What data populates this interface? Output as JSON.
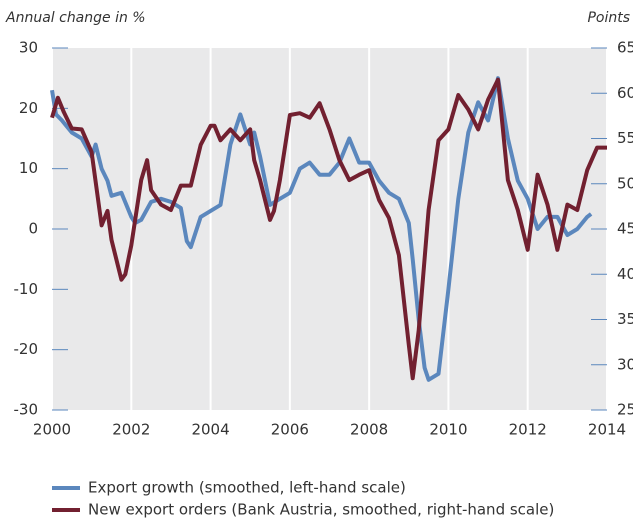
{
  "chart_data": {
    "type": "line",
    "ylabel": "Annual change in %",
    "y2label": "Points",
    "xlim": [
      2000,
      2014
    ],
    "xticks": [
      2000,
      2002,
      2004,
      2006,
      2008,
      2010,
      2012,
      2014
    ],
    "ylim": [
      -30,
      30
    ],
    "yticks": [
      -30,
      -20,
      -10,
      0,
      10,
      20,
      30
    ],
    "y2lim": [
      25,
      65
    ],
    "y2ticks": [
      25,
      30,
      35,
      40,
      45,
      50,
      55,
      60,
      65
    ],
    "grid": "x",
    "series": [
      {
        "name": "Export growth (smoothed, left-hand scale)",
        "color": "#5b87bd",
        "axis": "y",
        "x": [
          2000.0,
          2000.1,
          2000.25,
          2000.5,
          2000.75,
          2001.0,
          2001.1,
          2001.25,
          2001.4,
          2001.5,
          2001.75,
          2002.0,
          2002.1,
          2002.25,
          2002.5,
          2002.75,
          2003.0,
          2003.25,
          2003.4,
          2003.5,
          2003.75,
          2004.0,
          2004.25,
          2004.5,
          2004.75,
          2005.0,
          2005.1,
          2005.25,
          2005.5,
          2005.75,
          2006.0,
          2006.25,
          2006.5,
          2006.75,
          2007.0,
          2007.25,
          2007.5,
          2007.75,
          2008.0,
          2008.25,
          2008.5,
          2008.75,
          2009.0,
          2009.1,
          2009.25,
          2009.4,
          2009.5,
          2009.75,
          2010.0,
          2010.25,
          2010.5,
          2010.75,
          2011.0,
          2011.25,
          2011.5,
          2011.75,
          2012.0,
          2012.25,
          2012.5,
          2012.75,
          2013.0,
          2013.25,
          2013.5,
          2013.6
        ],
        "values": [
          23,
          19,
          18,
          16,
          15,
          12,
          14,
          10,
          8,
          5.5,
          6,
          2,
          1,
          1.5,
          4.5,
          5,
          4.5,
          3.5,
          -2,
          -3,
          2,
          3,
          4,
          14,
          19,
          14,
          16,
          12,
          4,
          5,
          6,
          10,
          11,
          9,
          9,
          11,
          15,
          11,
          11,
          8,
          6,
          5,
          1,
          -5,
          -15,
          -23,
          -25,
          -24,
          -10,
          5,
          16,
          21,
          18,
          25,
          15,
          8,
          5,
          0,
          2,
          2,
          -1,
          0,
          2,
          2.5
        ]
      },
      {
        "name": "New export orders (Bank Austria, smoothed, right-hand scale)",
        "color": "#722030",
        "axis": "y2",
        "x": [
          2000.0,
          2000.15,
          2000.3,
          2000.5,
          2000.75,
          2001.0,
          2001.25,
          2001.4,
          2001.5,
          2001.75,
          2001.85,
          2002.0,
          2002.25,
          2002.4,
          2002.5,
          2002.75,
          2003.0,
          2003.25,
          2003.5,
          2003.75,
          2004.0,
          2004.1,
          2004.25,
          2004.5,
          2004.75,
          2005.0,
          2005.1,
          2005.25,
          2005.5,
          2005.6,
          2005.75,
          2006.0,
          2006.25,
          2006.5,
          2006.75,
          2007.0,
          2007.25,
          2007.5,
          2007.75,
          2008.0,
          2008.25,
          2008.5,
          2008.75,
          2009.0,
          2009.1,
          2009.25,
          2009.5,
          2009.75,
          2010.0,
          2010.25,
          2010.5,
          2010.75,
          2011.0,
          2011.25,
          2011.5,
          2011.75,
          2012.0,
          2012.25,
          2012.5,
          2012.75,
          2013.0,
          2013.25,
          2013.5,
          2013.75,
          2014.0
        ],
        "values": [
          57.3,
          59.5,
          57.9,
          56.1,
          56,
          53.5,
          45.4,
          47,
          43.8,
          39.4,
          40,
          43.2,
          50.4,
          52.6,
          49.3,
          47.7,
          47.1,
          49.8,
          49.8,
          54.3,
          56.4,
          56.4,
          54.8,
          56,
          54.8,
          56,
          52.6,
          50.4,
          46,
          47,
          50.4,
          57.6,
          57.8,
          57.3,
          58.9,
          56,
          52.6,
          50.4,
          51,
          51.5,
          48.2,
          46.2,
          42.1,
          32.2,
          28.5,
          33.8,
          47.1,
          54.8,
          56,
          59.8,
          58.2,
          56,
          59.3,
          61.5,
          50.4,
          47.1,
          42.7,
          51,
          47.7,
          42.7,
          47.7,
          47.1,
          51.5,
          54,
          54
        ]
      }
    ]
  }
}
